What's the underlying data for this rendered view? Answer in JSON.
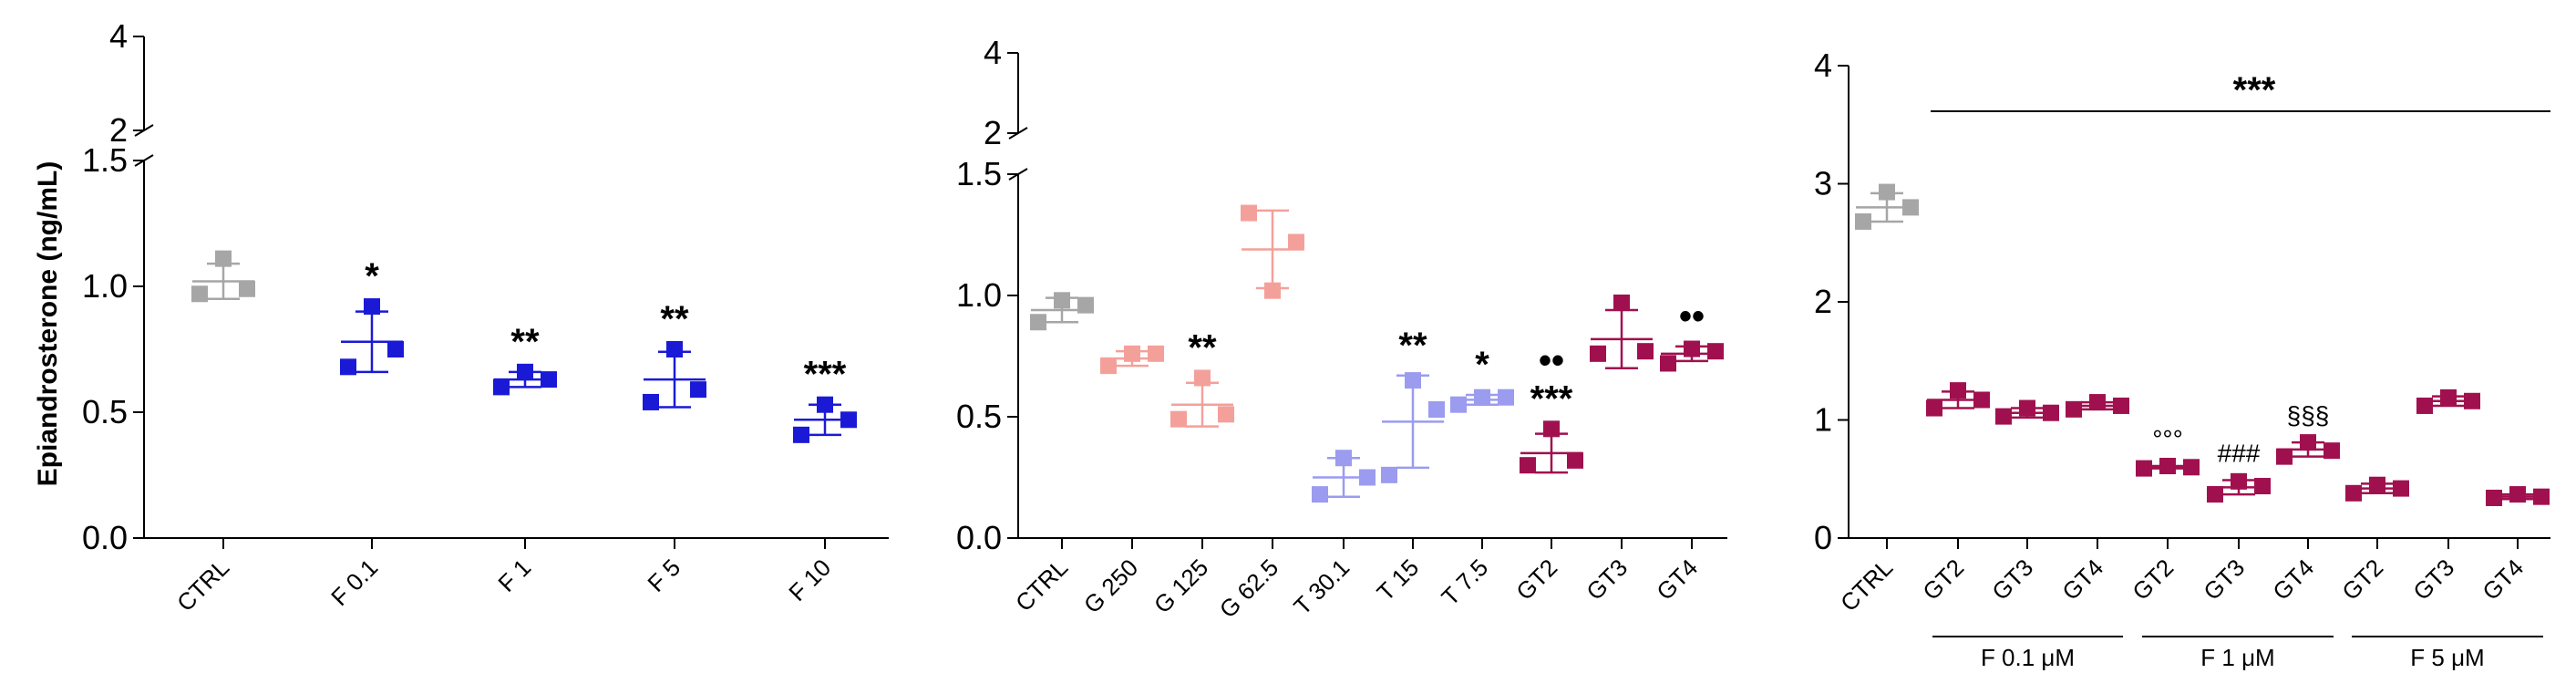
{
  "chart_data": [
    {
      "type": "scatter",
      "ylabel": "Epiandrosterone (ng/mL)",
      "broken_axis": true,
      "yticks_lower": [
        "0.0",
        "0.5",
        "1.0",
        "1.5"
      ],
      "yticks_upper": [
        "2",
        "4"
      ],
      "ylim_lower": [
        0,
        1.5
      ],
      "ylim_upper": [
        2,
        4
      ],
      "categories": [
        "CTRL",
        "F 0.1",
        "F 1",
        "F 5",
        "F 10"
      ],
      "colors": [
        "#a6a6a6",
        "#1a1ad6",
        "#1a1ad6",
        "#1a1ad6",
        "#1a1ad6"
      ],
      "points": [
        [
          0.97,
          1.11,
          0.99
        ],
        [
          0.68,
          0.92,
          0.75
        ],
        [
          0.6,
          0.66,
          0.63
        ],
        [
          0.54,
          0.75,
          0.59
        ],
        [
          0.41,
          0.53,
          0.47
        ]
      ],
      "means": [
        1.02,
        0.78,
        0.63,
        0.63,
        0.47
      ],
      "sd": [
        0.07,
        0.12,
        0.03,
        0.11,
        0.06
      ],
      "annotations": [
        "",
        "*",
        "**",
        "**",
        "***"
      ]
    },
    {
      "type": "scatter",
      "broken_axis": true,
      "yticks_lower": [
        "0.0",
        "0.5",
        "1.0",
        "1.5"
      ],
      "yticks_upper": [
        "2",
        "4"
      ],
      "ylim_lower": [
        0,
        1.5
      ],
      "ylim_upper": [
        2,
        4
      ],
      "categories": [
        "CTRL",
        "G 250",
        "G 125",
        "G 62.5",
        "T 30.1",
        "T 15",
        "T 7.5",
        "GT2",
        "GT3",
        "GT4"
      ],
      "colors": [
        "#a6a6a6",
        "#f4a09a",
        "#f4a09a",
        "#f4a09a",
        "#9b9bf0",
        "#9b9bf0",
        "#9b9bf0",
        "#a0104f",
        "#a0104f",
        "#a0104f"
      ],
      "points": [
        [
          0.89,
          0.98,
          0.96
        ],
        [
          0.71,
          0.76,
          0.76
        ],
        [
          0.49,
          0.66,
          0.51
        ],
        [
          1.34,
          1.02,
          1.22
        ],
        [
          0.18,
          0.33,
          0.25
        ],
        [
          0.26,
          0.65,
          0.53
        ],
        [
          0.55,
          0.58,
          0.58
        ],
        [
          0.3,
          0.45,
          0.32
        ],
        [
          0.76,
          0.97,
          0.77
        ],
        [
          0.72,
          0.78,
          0.77
        ]
      ],
      "means": [
        0.94,
        0.74,
        0.55,
        1.19,
        0.25,
        0.48,
        0.57,
        0.35,
        0.82,
        0.76
      ],
      "sd": [
        0.05,
        0.03,
        0.09,
        0.16,
        0.08,
        0.19,
        0.02,
        0.08,
        0.12,
        0.03
      ],
      "annotations": [
        "",
        "",
        "**",
        "",
        "",
        "**",
        "*",
        "***",
        "",
        ""
      ],
      "annotations_secondary": [
        "",
        "",
        "",
        "",
        "",
        "",
        "",
        "••",
        "",
        "••"
      ]
    },
    {
      "type": "scatter",
      "yticks": [
        "0",
        "1",
        "2",
        "3",
        "4"
      ],
      "ylim": [
        0,
        4
      ],
      "categories": [
        "CTRL",
        "GT2",
        "GT3",
        "GT4",
        "GT2",
        "GT3",
        "GT4",
        "GT2",
        "GT3",
        "GT4"
      ],
      "colors": [
        "#a6a6a6",
        "#a0104f",
        "#a0104f",
        "#a0104f",
        "#a0104f",
        "#a0104f",
        "#a0104f",
        "#a0104f",
        "#a0104f",
        "#a0104f"
      ],
      "points": [
        [
          2.68,
          2.93,
          2.8
        ],
        [
          1.1,
          1.25,
          1.17
        ],
        [
          1.03,
          1.1,
          1.06
        ],
        [
          1.09,
          1.15,
          1.12
        ],
        [
          0.59,
          0.61,
          0.6
        ],
        [
          0.37,
          0.48,
          0.44
        ],
        [
          0.69,
          0.81,
          0.74
        ],
        [
          0.38,
          0.45,
          0.42
        ],
        [
          1.12,
          1.19,
          1.16
        ],
        [
          0.34,
          0.37,
          0.35
        ]
      ],
      "means": [
        2.8,
        1.17,
        1.06,
        1.12,
        0.6,
        0.43,
        0.75,
        0.42,
        1.16,
        0.35
      ],
      "sd": [
        0.12,
        0.07,
        0.04,
        0.03,
        0.01,
        0.06,
        0.06,
        0.04,
        0.04,
        0.02
      ],
      "annotations": [
        "",
        "",
        "",
        "",
        "°°°",
        "###",
        "§§§",
        "",
        "",
        ""
      ],
      "bracket_label": "***",
      "groups": [
        {
          "label": "F 0.1 μM",
          "from": 1,
          "to": 3
        },
        {
          "label": "F 1 μM",
          "from": 4,
          "to": 6
        },
        {
          "label": "F 5 μM",
          "from": 7,
          "to": 9
        }
      ]
    }
  ]
}
